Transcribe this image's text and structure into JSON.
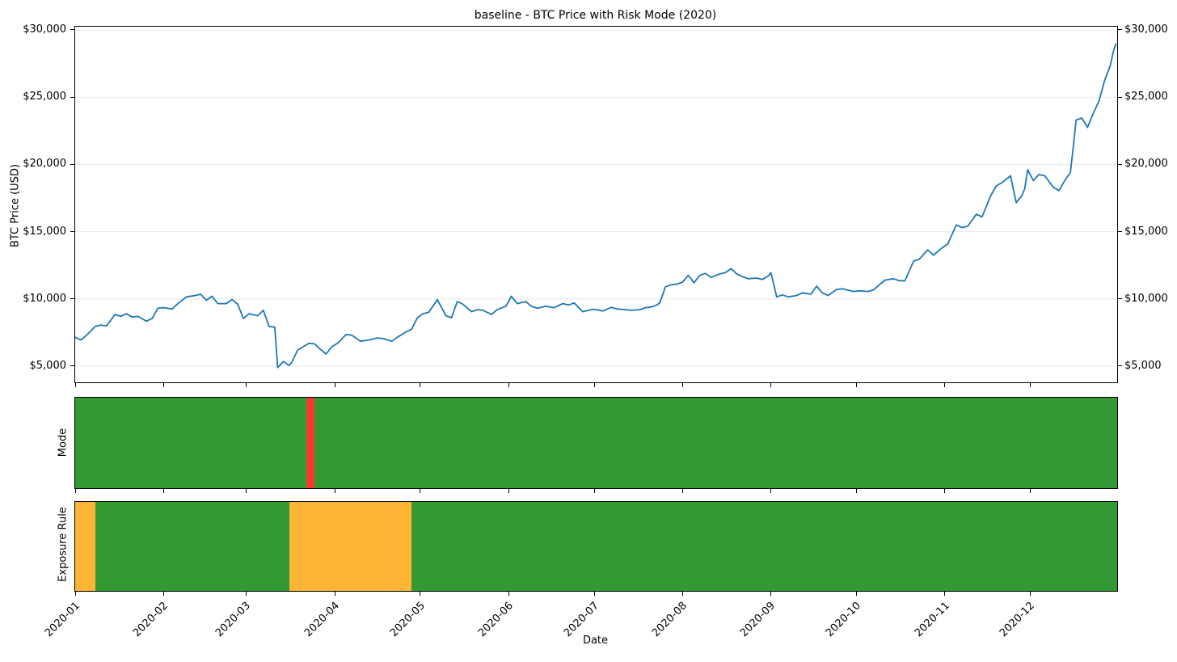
{
  "title": "baseline - BTC Price with Risk Mode (2020)",
  "axes": {
    "x_label": "Date",
    "y_label": "BTC Price (USD)",
    "y_ticks": [
      {
        "value": 30000,
        "label": "$30,000"
      },
      {
        "value": 25000,
        "label": "$25,000"
      },
      {
        "value": 20000,
        "label": "$20,000"
      },
      {
        "value": 15000,
        "label": "$15,000"
      },
      {
        "value": 10000,
        "label": "$10,000"
      },
      {
        "value": 5000,
        "label": "$5,000"
      }
    ],
    "x_ticks": [
      {
        "date": "2020-01-01",
        "label": "2020-01"
      },
      {
        "date": "2020-02-01",
        "label": "2020-02"
      },
      {
        "date": "2020-03-01",
        "label": "2020-03"
      },
      {
        "date": "2020-04-01",
        "label": "2020-04"
      },
      {
        "date": "2020-05-01",
        "label": "2020-05"
      },
      {
        "date": "2020-06-01",
        "label": "2020-06"
      },
      {
        "date": "2020-07-01",
        "label": "2020-07"
      },
      {
        "date": "2020-08-01",
        "label": "2020-08"
      },
      {
        "date": "2020-09-01",
        "label": "2020-09"
      },
      {
        "date": "2020-10-01",
        "label": "2020-10"
      },
      {
        "date": "2020-11-01",
        "label": "2020-11"
      },
      {
        "date": "2020-12-01",
        "label": "2020-12"
      }
    ]
  },
  "tracks": {
    "mode_label": "Mode",
    "exposure_label": "Exposure Rule"
  },
  "colors": {
    "line": "#1f77b4",
    "grid": "#e7e7e7",
    "green": "#339933",
    "red": "#f53b31",
    "orange": "#feb434"
  },
  "chart_data": {
    "type": "line",
    "title": "baseline - BTC Price with Risk Mode (2020)",
    "xlabel": "Date",
    "ylabel": "BTC Price (USD)",
    "x_range": [
      "2020-01-01",
      "2020-12-31"
    ],
    "ylim": [
      3800,
      30240
    ],
    "grid": "horizontal",
    "legend": "none",
    "series": [
      {
        "name": "BTC Price (USD)",
        "color": "#1f77b4",
        "points": [
          [
            "2020-01-01",
            7150
          ],
          [
            "2020-01-03",
            6950
          ],
          [
            "2020-01-05",
            7300
          ],
          [
            "2020-01-08",
            7950
          ],
          [
            "2020-01-10",
            8050
          ],
          [
            "2020-01-12",
            8000
          ],
          [
            "2020-01-15",
            8850
          ],
          [
            "2020-01-17",
            8700
          ],
          [
            "2020-01-19",
            8900
          ],
          [
            "2020-01-21",
            8650
          ],
          [
            "2020-01-23",
            8700
          ],
          [
            "2020-01-26",
            8350
          ],
          [
            "2020-01-28",
            8550
          ],
          [
            "2020-01-30",
            9300
          ],
          [
            "2020-02-01",
            9350
          ],
          [
            "2020-02-04",
            9250
          ],
          [
            "2020-02-06",
            9650
          ],
          [
            "2020-02-09",
            10150
          ],
          [
            "2020-02-12",
            10250
          ],
          [
            "2020-02-14",
            10350
          ],
          [
            "2020-02-16",
            9900
          ],
          [
            "2020-02-18",
            10200
          ],
          [
            "2020-02-20",
            9650
          ],
          [
            "2020-02-23",
            9650
          ],
          [
            "2020-02-25",
            9950
          ],
          [
            "2020-02-27",
            9600
          ],
          [
            "2020-02-29",
            8550
          ],
          [
            "2020-03-02",
            8900
          ],
          [
            "2020-03-05",
            8750
          ],
          [
            "2020-03-07",
            9150
          ],
          [
            "2020-03-09",
            7950
          ],
          [
            "2020-03-11",
            7900
          ],
          [
            "2020-03-12",
            4900
          ],
          [
            "2020-03-14",
            5350
          ],
          [
            "2020-03-16",
            5050
          ],
          [
            "2020-03-17",
            5300
          ],
          [
            "2020-03-19",
            6200
          ],
          [
            "2020-03-21",
            6450
          ],
          [
            "2020-03-23",
            6700
          ],
          [
            "2020-03-25",
            6650
          ],
          [
            "2020-03-27",
            6250
          ],
          [
            "2020-03-29",
            5900
          ],
          [
            "2020-03-31",
            6450
          ],
          [
            "2020-04-02",
            6700
          ],
          [
            "2020-04-05",
            7350
          ],
          [
            "2020-04-07",
            7300
          ],
          [
            "2020-04-10",
            6850
          ],
          [
            "2020-04-13",
            6950
          ],
          [
            "2020-04-16",
            7100
          ],
          [
            "2020-04-18",
            7050
          ],
          [
            "2020-04-21",
            6850
          ],
          [
            "2020-04-23",
            7150
          ],
          [
            "2020-04-26",
            7550
          ],
          [
            "2020-04-28",
            7750
          ],
          [
            "2020-04-30",
            8600
          ],
          [
            "2020-05-02",
            8900
          ],
          [
            "2020-05-04",
            9000
          ],
          [
            "2020-05-07",
            9950
          ],
          [
            "2020-05-10",
            8750
          ],
          [
            "2020-05-12",
            8600
          ],
          [
            "2020-05-14",
            9800
          ],
          [
            "2020-05-16",
            9600
          ],
          [
            "2020-05-19",
            9050
          ],
          [
            "2020-05-21",
            9200
          ],
          [
            "2020-05-23",
            9150
          ],
          [
            "2020-05-26",
            8850
          ],
          [
            "2020-05-28",
            9200
          ],
          [
            "2020-05-31",
            9450
          ],
          [
            "2020-06-02",
            10200
          ],
          [
            "2020-06-04",
            9650
          ],
          [
            "2020-06-07",
            9800
          ],
          [
            "2020-06-09",
            9450
          ],
          [
            "2020-06-11",
            9300
          ],
          [
            "2020-06-14",
            9450
          ],
          [
            "2020-06-17",
            9350
          ],
          [
            "2020-06-20",
            9650
          ],
          [
            "2020-06-22",
            9550
          ],
          [
            "2020-06-24",
            9700
          ],
          [
            "2020-06-27",
            9050
          ],
          [
            "2020-06-29",
            9150
          ],
          [
            "2020-07-01",
            9230
          ],
          [
            "2020-07-04",
            9100
          ],
          [
            "2020-07-07",
            9375
          ],
          [
            "2020-07-09",
            9250
          ],
          [
            "2020-07-12",
            9200
          ],
          [
            "2020-07-14",
            9150
          ],
          [
            "2020-07-17",
            9200
          ],
          [
            "2020-07-19",
            9350
          ],
          [
            "2020-07-21",
            9400
          ],
          [
            "2020-07-23",
            9550
          ],
          [
            "2020-07-24",
            9700
          ],
          [
            "2020-07-26",
            10900
          ],
          [
            "2020-07-28",
            11050
          ],
          [
            "2020-07-30",
            11100
          ],
          [
            "2020-08-01",
            11250
          ],
          [
            "2020-08-03",
            11750
          ],
          [
            "2020-08-05",
            11200
          ],
          [
            "2020-08-07",
            11750
          ],
          [
            "2020-08-09",
            11900
          ],
          [
            "2020-08-11",
            11600
          ],
          [
            "2020-08-14",
            11850
          ],
          [
            "2020-08-16",
            11950
          ],
          [
            "2020-08-18",
            12250
          ],
          [
            "2020-08-20",
            11850
          ],
          [
            "2020-08-22",
            11650
          ],
          [
            "2020-08-24",
            11500
          ],
          [
            "2020-08-27",
            11550
          ],
          [
            "2020-08-29",
            11450
          ],
          [
            "2020-08-31",
            11700
          ],
          [
            "2020-09-01",
            11950
          ],
          [
            "2020-09-03",
            10150
          ],
          [
            "2020-09-05",
            10300
          ],
          [
            "2020-09-07",
            10150
          ],
          [
            "2020-09-10",
            10250
          ],
          [
            "2020-09-12",
            10450
          ],
          [
            "2020-09-15",
            10350
          ],
          [
            "2020-09-17",
            10950
          ],
          [
            "2020-09-19",
            10450
          ],
          [
            "2020-09-21",
            10250
          ],
          [
            "2020-09-24",
            10700
          ],
          [
            "2020-09-26",
            10750
          ],
          [
            "2020-09-30",
            10550
          ],
          [
            "2020-10-02",
            10600
          ],
          [
            "2020-10-05",
            10550
          ],
          [
            "2020-10-07",
            10670
          ],
          [
            "2020-10-09",
            11050
          ],
          [
            "2020-10-11",
            11400
          ],
          [
            "2020-10-14",
            11500
          ],
          [
            "2020-10-16",
            11350
          ],
          [
            "2020-10-18",
            11350
          ],
          [
            "2020-10-21",
            12800
          ],
          [
            "2020-10-23",
            12950
          ],
          [
            "2020-10-26",
            13650
          ],
          [
            "2020-10-28",
            13250
          ],
          [
            "2020-10-31",
            13800
          ],
          [
            "2020-11-02",
            14100
          ],
          [
            "2020-11-05",
            15500
          ],
          [
            "2020-11-07",
            15300
          ],
          [
            "2020-11-09",
            15400
          ],
          [
            "2020-11-12",
            16300
          ],
          [
            "2020-11-14",
            16100
          ],
          [
            "2020-11-17",
            17650
          ],
          [
            "2020-11-19",
            18400
          ],
          [
            "2020-11-21",
            18650
          ],
          [
            "2020-11-24",
            19150
          ],
          [
            "2020-11-26",
            17150
          ],
          [
            "2020-11-28",
            17700
          ],
          [
            "2020-11-29",
            18200
          ],
          [
            "2020-11-30",
            19600
          ],
          [
            "2020-12-02",
            18800
          ],
          [
            "2020-12-04",
            19250
          ],
          [
            "2020-12-06",
            19150
          ],
          [
            "2020-12-09",
            18300
          ],
          [
            "2020-12-11",
            18050
          ],
          [
            "2020-12-13",
            18800
          ],
          [
            "2020-12-15",
            19400
          ],
          [
            "2020-12-16",
            21300
          ],
          [
            "2020-12-17",
            23300
          ],
          [
            "2020-12-19",
            23450
          ],
          [
            "2020-12-21",
            22750
          ],
          [
            "2020-12-23",
            23800
          ],
          [
            "2020-12-25",
            24700
          ],
          [
            "2020-12-27",
            26250
          ],
          [
            "2020-12-29",
            27350
          ],
          [
            "2020-12-30",
            28350
          ],
          [
            "2020-12-31",
            29000
          ]
        ]
      }
    ],
    "mode_track": [
      {
        "from": "2020-01-01",
        "to": "2020-03-22",
        "state": "risk-on",
        "color": "#339933"
      },
      {
        "from": "2020-03-22",
        "to": "2020-03-25",
        "state": "risk-off",
        "color": "#f53b31"
      },
      {
        "from": "2020-03-25",
        "to": "2020-12-31",
        "state": "risk-on",
        "color": "#339933"
      }
    ],
    "exposure_track": [
      {
        "from": "2020-01-01",
        "to": "2020-01-08",
        "state": "reduced",
        "color": "#feb434"
      },
      {
        "from": "2020-01-08",
        "to": "2020-03-16",
        "state": "full",
        "color": "#339933"
      },
      {
        "from": "2020-03-16",
        "to": "2020-04-28",
        "state": "reduced",
        "color": "#feb434"
      },
      {
        "from": "2020-04-28",
        "to": "2020-12-31",
        "state": "full",
        "color": "#339933"
      }
    ]
  }
}
